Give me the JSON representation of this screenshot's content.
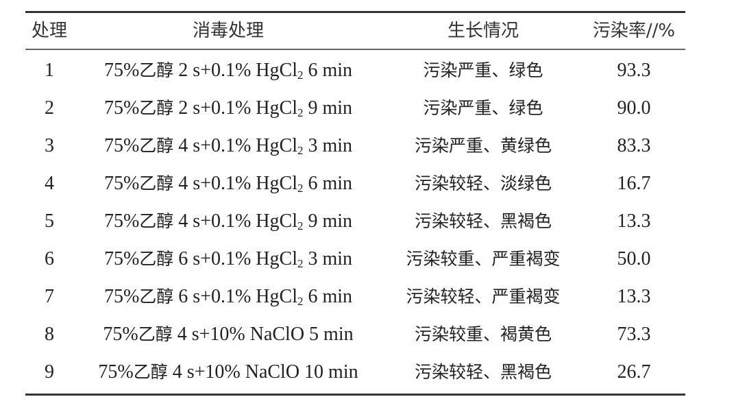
{
  "headers": [
    "处理",
    "消毒处理",
    "生长情况",
    "污染率//%"
  ],
  "rows": [
    {
      "id": "1",
      "pre": "75%",
      "cn": "乙醇",
      "mid": " 2 s+0.1% HgCl",
      "sub": "2",
      "post": " 6 min",
      "growth": "污染严重、绿色",
      "rate": "93.3"
    },
    {
      "id": "2",
      "pre": "75%",
      "cn": "乙醇",
      "mid": " 2 s+0.1% HgCl",
      "sub": "2",
      "post": " 9 min",
      "growth": "污染严重、绿色",
      "rate": "90.0"
    },
    {
      "id": "3",
      "pre": "75%",
      "cn": "乙醇",
      "mid": " 4 s+0.1% HgCl",
      "sub": "2",
      "post": " 3 min",
      "growth": "污染严重、黄绿色",
      "rate": "83.3"
    },
    {
      "id": "4",
      "pre": "75%",
      "cn": "乙醇",
      "mid": " 4 s+0.1% HgCl",
      "sub": "2",
      "post": " 6 min",
      "growth": "污染较轻、淡绿色",
      "rate": "16.7"
    },
    {
      "id": "5",
      "pre": "75%",
      "cn": "乙醇",
      "mid": " 4 s+0.1% HgCl",
      "sub": "2",
      "post": " 9 min",
      "growth": "污染较轻、黑褐色",
      "rate": "13.3"
    },
    {
      "id": "6",
      "pre": "75%",
      "cn": "乙醇",
      "mid": " 6 s+0.1% HgCl",
      "sub": "2",
      "post": " 3 min",
      "growth": "污染较重、严重褐变",
      "rate": "50.0"
    },
    {
      "id": "7",
      "pre": "75%",
      "cn": "乙醇",
      "mid": " 6 s+0.1% HgCl",
      "sub": "2",
      "post": " 6 min",
      "growth": "污染较轻、严重褐变",
      "rate": "13.3"
    },
    {
      "id": "8",
      "pre": "75%",
      "cn": "乙醇",
      "mid": " 4 s+10% NaClO 5 min",
      "sub": "",
      "post": "",
      "growth": "污染较重、褐黄色",
      "rate": "73.3"
    },
    {
      "id": "9",
      "pre": "75%",
      "cn": "乙醇",
      "mid": " 4 s+10% NaClO 10 min",
      "sub": "",
      "post": "",
      "growth": "污染较轻、黑褐色",
      "rate": "26.7"
    }
  ]
}
